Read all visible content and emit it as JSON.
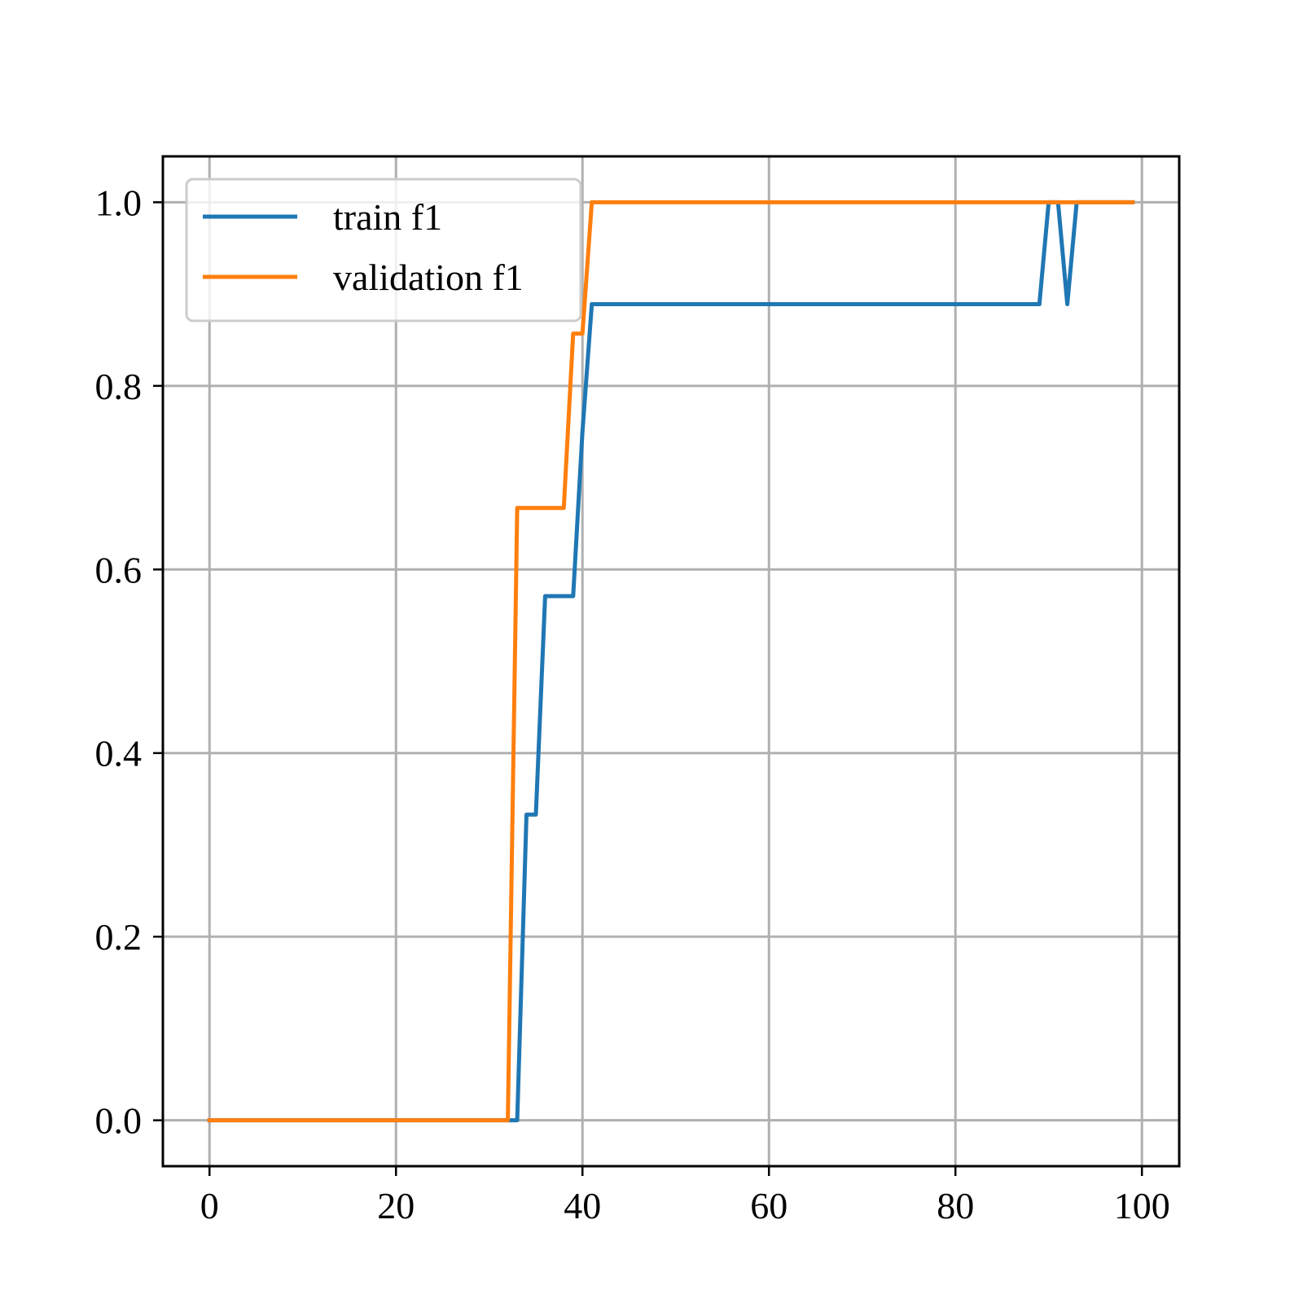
{
  "chart_data": {
    "type": "line",
    "title": "",
    "xlabel": "",
    "ylabel": "",
    "xlim": [
      -5,
      104
    ],
    "ylim": [
      -0.05,
      1.05
    ],
    "grid": true,
    "legend_position": "top-left",
    "xticks": [
      {
        "value": 0,
        "label": "0"
      },
      {
        "value": 20,
        "label": "20"
      },
      {
        "value": 40,
        "label": "40"
      },
      {
        "value": 60,
        "label": "60"
      },
      {
        "value": 80,
        "label": "80"
      },
      {
        "value": 100,
        "label": "100"
      }
    ],
    "yticks": [
      {
        "value": 0.0,
        "label": "0.0"
      },
      {
        "value": 0.2,
        "label": "0.2"
      },
      {
        "value": 0.4,
        "label": "0.4"
      },
      {
        "value": 0.6,
        "label": "0.6"
      },
      {
        "value": 0.8,
        "label": "0.8"
      },
      {
        "value": 1.0,
        "label": "1.0"
      }
    ],
    "series": [
      {
        "name": "train f1",
        "color": "#1f77b4",
        "x": [
          0,
          33,
          34,
          35,
          36,
          37,
          38,
          39,
          40,
          41,
          42,
          50,
          60,
          70,
          80,
          89,
          90,
          91,
          92,
          93,
          94,
          99
        ],
        "y": [
          0,
          0,
          0.333,
          0.333,
          0.571,
          0.571,
          0.571,
          0.571,
          0.75,
          0.889,
          0.889,
          0.889,
          0.889,
          0.889,
          0.889,
          0.889,
          1.0,
          1.0,
          0.889,
          1.0,
          1.0,
          1.0
        ]
      },
      {
        "name": "validation f1",
        "color": "#ff7f0e",
        "x": [
          0,
          32,
          33,
          34,
          35,
          36,
          37,
          38,
          39,
          40,
          41,
          42,
          50,
          60,
          70,
          80,
          90,
          99
        ],
        "y": [
          0,
          0,
          0.667,
          0.667,
          0.667,
          0.667,
          0.667,
          0.667,
          0.857,
          0.857,
          1.0,
          1.0,
          1.0,
          1.0,
          1.0,
          1.0,
          1.0,
          1.0
        ]
      }
    ]
  }
}
